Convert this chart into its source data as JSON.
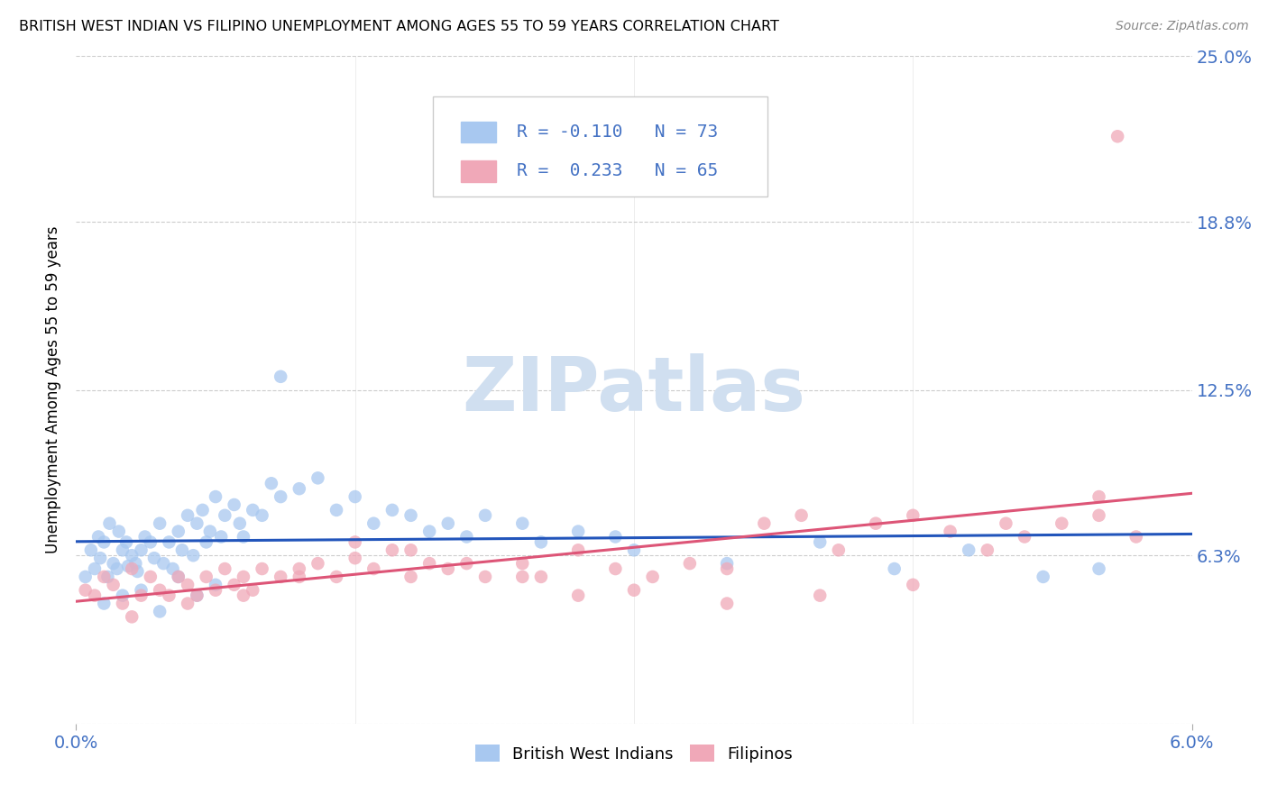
{
  "title": "BRITISH WEST INDIAN VS FILIPINO UNEMPLOYMENT AMONG AGES 55 TO 59 YEARS CORRELATION CHART",
  "source": "Source: ZipAtlas.com",
  "ylabel": "Unemployment Among Ages 55 to 59 years",
  "legend_label1": "British West Indians",
  "legend_label2": "Filipinos",
  "r1": -0.11,
  "n1": 73,
  "r2": 0.233,
  "n2": 65,
  "xmin": 0.0,
  "xmax": 6.0,
  "ymin": 0.0,
  "ymax": 25.0,
  "ytick_vals": [
    0.0,
    6.3,
    12.5,
    18.8,
    25.0
  ],
  "ytick_labels": [
    "",
    "6.3%",
    "12.5%",
    "18.8%",
    "25.0%"
  ],
  "xtick_left": "0.0%",
  "xtick_right": "6.0%",
  "color_bwi": "#a8c8f0",
  "color_fil": "#f0a8b8",
  "color_line_bwi": "#2255bb",
  "color_line_fil": "#dd5577",
  "color_blue_text": "#4472c4",
  "watermark_color": "#d0dff0",
  "bg_color": "#ffffff",
  "grid_color": "#cccccc",
  "bwi_x": [
    0.05,
    0.08,
    0.1,
    0.12,
    0.13,
    0.15,
    0.17,
    0.18,
    0.2,
    0.22,
    0.23,
    0.25,
    0.27,
    0.28,
    0.3,
    0.32,
    0.33,
    0.35,
    0.37,
    0.4,
    0.42,
    0.45,
    0.47,
    0.5,
    0.52,
    0.55,
    0.57,
    0.6,
    0.63,
    0.65,
    0.68,
    0.7,
    0.72,
    0.75,
    0.78,
    0.8,
    0.85,
    0.88,
    0.9,
    0.95,
    1.0,
    1.05,
    1.1,
    1.2,
    1.3,
    1.4,
    1.5,
    1.6,
    1.7,
    1.8,
    1.9,
    2.0,
    2.1,
    2.2,
    2.4,
    2.5,
    2.7,
    2.9,
    3.0,
    3.5,
    4.0,
    4.4,
    4.8,
    5.2,
    5.5,
    0.15,
    0.25,
    0.35,
    0.45,
    0.55,
    0.65,
    0.75,
    1.1
  ],
  "bwi_y": [
    5.5,
    6.5,
    5.8,
    7.0,
    6.2,
    6.8,
    5.5,
    7.5,
    6.0,
    5.8,
    7.2,
    6.5,
    6.8,
    5.9,
    6.3,
    6.0,
    5.7,
    6.5,
    7.0,
    6.8,
    6.2,
    7.5,
    6.0,
    6.8,
    5.8,
    7.2,
    6.5,
    7.8,
    6.3,
    7.5,
    8.0,
    6.8,
    7.2,
    8.5,
    7.0,
    7.8,
    8.2,
    7.5,
    7.0,
    8.0,
    7.8,
    9.0,
    8.5,
    8.8,
    9.2,
    8.0,
    8.5,
    7.5,
    8.0,
    7.8,
    7.2,
    7.5,
    7.0,
    7.8,
    7.5,
    6.8,
    7.2,
    7.0,
    6.5,
    6.0,
    6.8,
    5.8,
    6.5,
    5.5,
    5.8,
    4.5,
    4.8,
    5.0,
    4.2,
    5.5,
    4.8,
    5.2,
    13.0
  ],
  "fil_x": [
    0.05,
    0.1,
    0.15,
    0.2,
    0.25,
    0.3,
    0.35,
    0.4,
    0.45,
    0.5,
    0.55,
    0.6,
    0.65,
    0.7,
    0.75,
    0.8,
    0.85,
    0.9,
    0.95,
    1.0,
    1.1,
    1.2,
    1.3,
    1.4,
    1.5,
    1.6,
    1.7,
    1.8,
    1.9,
    2.0,
    2.2,
    2.4,
    2.5,
    2.7,
    2.9,
    3.1,
    3.3,
    3.5,
    3.7,
    3.9,
    4.1,
    4.3,
    4.5,
    4.7,
    4.9,
    5.1,
    5.3,
    5.5,
    5.7,
    0.3,
    0.6,
    0.9,
    1.2,
    1.5,
    1.8,
    2.1,
    2.4,
    2.7,
    3.0,
    3.5,
    4.0,
    4.5,
    5.0,
    5.5,
    5.6
  ],
  "fil_y": [
    5.0,
    4.8,
    5.5,
    5.2,
    4.5,
    5.8,
    4.8,
    5.5,
    5.0,
    4.8,
    5.5,
    5.2,
    4.8,
    5.5,
    5.0,
    5.8,
    5.2,
    5.5,
    5.0,
    5.8,
    5.5,
    5.8,
    6.0,
    5.5,
    6.2,
    5.8,
    6.5,
    5.5,
    6.0,
    5.8,
    5.5,
    6.0,
    5.5,
    6.5,
    5.8,
    5.5,
    6.0,
    5.8,
    7.5,
    7.8,
    6.5,
    7.5,
    7.8,
    7.2,
    6.5,
    7.0,
    7.5,
    7.8,
    7.0,
    4.0,
    4.5,
    4.8,
    5.5,
    6.8,
    6.5,
    6.0,
    5.5,
    4.8,
    5.0,
    4.5,
    4.8,
    5.2,
    7.5,
    8.5,
    22.0
  ]
}
